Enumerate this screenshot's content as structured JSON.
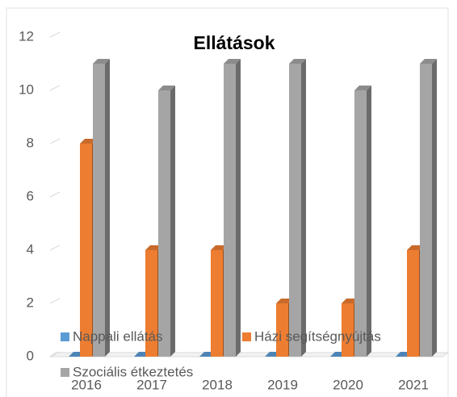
{
  "chart_data": {
    "type": "bar3d",
    "title": "Ellátások",
    "categories": [
      "2016",
      "2017",
      "2018",
      "2019",
      "2020",
      "2021"
    ],
    "series": [
      {
        "name": "Nappali ellátás",
        "color": "#5b9bd5",
        "values": [
          0,
          0,
          0,
          0,
          0,
          0
        ]
      },
      {
        "name": "Házi segítségnyújtás",
        "color": "#ed7d31",
        "values": [
          8,
          4,
          4,
          2,
          2,
          4
        ]
      },
      {
        "name": "Szociális étkeztetés",
        "color": "#a5a5a5",
        "values": [
          11,
          10,
          11,
          11,
          10,
          11
        ]
      }
    ],
    "ylim": [
      0,
      12
    ],
    "yticks": [
      0,
      2,
      4,
      6,
      8,
      10,
      12
    ]
  }
}
